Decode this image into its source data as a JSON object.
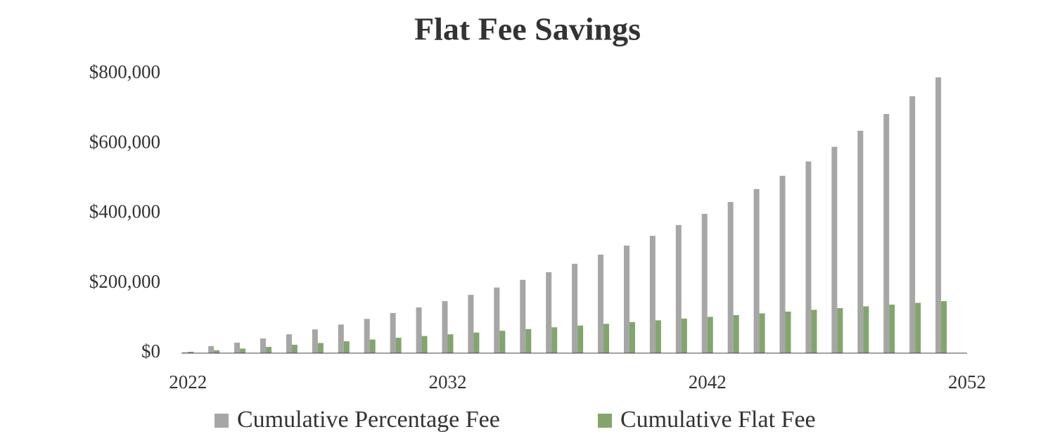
{
  "chart_data": {
    "type": "bar",
    "title": "Flat Fee Savings",
    "x": [
      2022,
      2023,
      2024,
      2025,
      2026,
      2027,
      2028,
      2029,
      2030,
      2031,
      2032,
      2033,
      2034,
      2035,
      2036,
      2037,
      2038,
      2039,
      2040,
      2041,
      2042,
      2043,
      2044,
      2045,
      2046,
      2047,
      2048,
      2049,
      2050,
      2051
    ],
    "series": [
      {
        "name": "Cumulative Percentage Fee",
        "color": "#a6a6a6",
        "values": [
          2000,
          20000,
          30000,
          42000,
          54000,
          68000,
          82000,
          98000,
          115000,
          131000,
          149000,
          167000,
          188000,
          210000,
          232000,
          256000,
          282000,
          308000,
          336000,
          367000,
          399000,
          433000,
          470000,
          508000,
          549000,
          591000,
          637000,
          685000,
          736000,
          790000
        ]
      },
      {
        "name": "Cumulative Flat Fee",
        "color": "#82a56c",
        "values": [
          4000,
          8000,
          13000,
          18000,
          24000,
          29000,
          34000,
          39000,
          44000,
          49000,
          54000,
          59000,
          64000,
          69000,
          74000,
          79000,
          84000,
          89000,
          94000,
          99000,
          104000,
          109000,
          114000,
          119000,
          124000,
          129000,
          134000,
          139000,
          144000,
          149000
        ]
      }
    ],
    "xlim": [
      2021.75,
      2052
    ],
    "xticks": [
      2022,
      2032,
      2042,
      2052
    ],
    "ylim": [
      0,
      800000
    ],
    "yticks": [
      {
        "value": 0,
        "label": "$0"
      },
      {
        "value": 200000,
        "label": "$200,000"
      },
      {
        "value": 400000,
        "label": "$400,000"
      },
      {
        "value": 600000,
        "label": "$600,000"
      },
      {
        "value": 800000,
        "label": "$800,000"
      }
    ],
    "grid": false,
    "legend": "bottom"
  }
}
